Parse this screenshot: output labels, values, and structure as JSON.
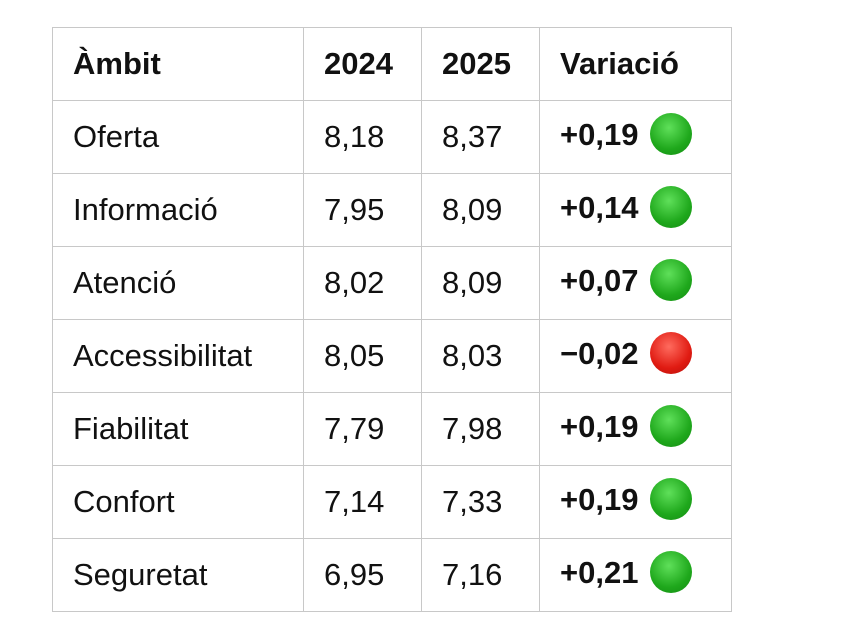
{
  "table": {
    "headers": [
      "Àmbit",
      "2024",
      "2025",
      "Variació"
    ],
    "rows": [
      {
        "ambit": "Oferta",
        "y2024": "8,18",
        "y2025": "8,37",
        "variacio": "+0,19",
        "status": "up"
      },
      {
        "ambit": "Informació",
        "y2024": "7,95",
        "y2025": "8,09",
        "variacio": "+0,14",
        "status": "up"
      },
      {
        "ambit": "Atenció",
        "y2024": "8,02",
        "y2025": "8,09",
        "variacio": "+0,07",
        "status": "up"
      },
      {
        "ambit": "Accessibilitat",
        "y2024": "8,05",
        "y2025": "8,03",
        "variacio": "−0,02",
        "status": "down"
      },
      {
        "ambit": "Fiabilitat",
        "y2024": "7,79",
        "y2025": "7,98",
        "variacio": "+0,19",
        "status": "up"
      },
      {
        "ambit": "Confort",
        "y2024": "7,14",
        "y2025": "7,33",
        "variacio": "+0,19",
        "status": "up"
      },
      {
        "ambit": "Seguretat",
        "y2024": "6,95",
        "y2025": "7,16",
        "variacio": "+0,21",
        "status": "up"
      }
    ]
  },
  "icons": {
    "up": "green-circle-icon",
    "down": "red-circle-icon"
  },
  "colors": {
    "up": "#1fa81c",
    "down": "#e01b12",
    "border": "#c8c8c8"
  }
}
